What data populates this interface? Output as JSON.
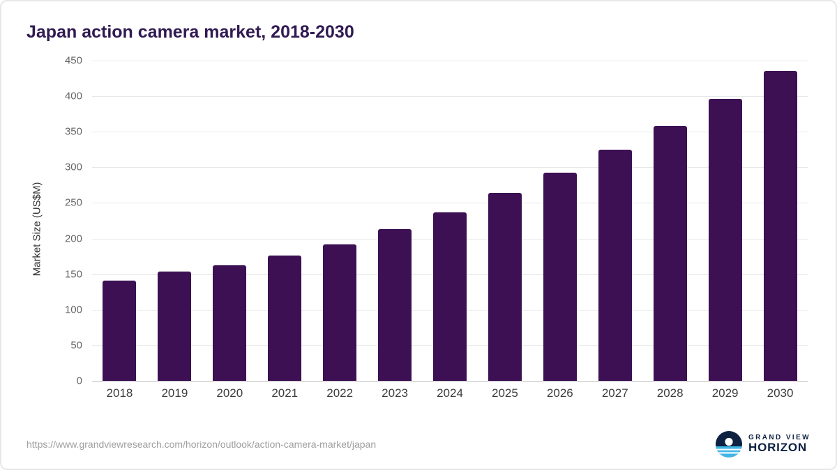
{
  "title": "Japan action camera market, 2018-2030",
  "footer": {
    "source_url": "https://www.grandviewresearch.com/horizon/outlook/action-camera-market/japan",
    "brand": {
      "line1": "GRAND VIEW",
      "line2": "HORIZON"
    }
  },
  "colors": {
    "bar": "#3c1053",
    "title_text": "#301a52",
    "grid": "#e8e8e8",
    "logo_navy": "#0d2240",
    "logo_blue": "#41b6e6"
  },
  "chart_data": {
    "type": "bar",
    "title": "Japan action camera market, 2018-2030",
    "categories": [
      "2018",
      "2019",
      "2020",
      "2021",
      "2022",
      "2023",
      "2024",
      "2025",
      "2026",
      "2027",
      "2028",
      "2029",
      "2030"
    ],
    "values": [
      141,
      154,
      162,
      176,
      192,
      213,
      237,
      264,
      293,
      325,
      358,
      396,
      435
    ],
    "xlabel": "",
    "ylabel": "Market Size (US$M)",
    "ylim": [
      0,
      450
    ],
    "ytick_interval": 50,
    "grid": true,
    "legend": "none",
    "bar_color": "#3c1053"
  }
}
